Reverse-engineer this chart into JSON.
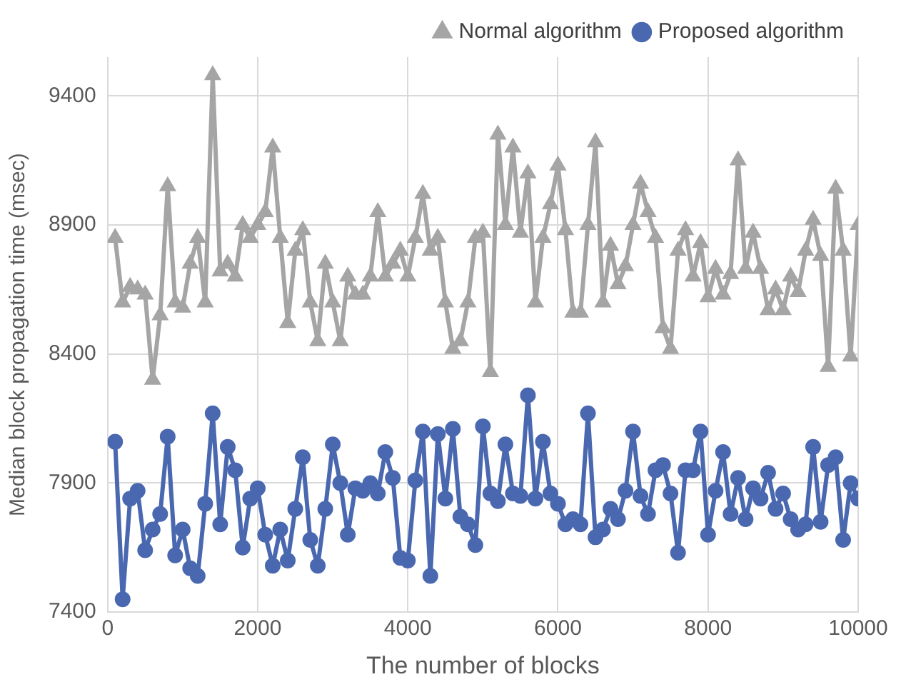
{
  "chart_data": {
    "type": "line",
    "xlabel": "The number of blocks",
    "ylabel": "Median block propagation time (msec)",
    "x": [
      100,
      200,
      300,
      400,
      500,
      600,
      700,
      800,
      900,
      1000,
      1100,
      1200,
      1300,
      1400,
      1500,
      1600,
      1700,
      1800,
      1900,
      2000,
      2100,
      2200,
      2300,
      2400,
      2500,
      2600,
      2700,
      2800,
      2900,
      3000,
      3100,
      3200,
      3300,
      3400,
      3500,
      3600,
      3700,
      3800,
      3900,
      4000,
      4100,
      4200,
      4300,
      4400,
      4500,
      4600,
      4700,
      4800,
      4900,
      5000,
      5100,
      5200,
      5300,
      5400,
      5500,
      5600,
      5700,
      5800,
      5900,
      6000,
      6100,
      6200,
      6300,
      6400,
      6500,
      6600,
      6700,
      6800,
      6900,
      7000,
      7100,
      7200,
      7300,
      7400,
      7500,
      7600,
      7700,
      7800,
      7900,
      8000,
      8100,
      8200,
      8300,
      8400,
      8500,
      8600,
      8700,
      8800,
      8900,
      9000,
      9100,
      9200,
      9300,
      9400,
      9500,
      9600,
      9700,
      9800,
      9900,
      10000
    ],
    "series": [
      {
        "name": "Normal algorithm",
        "color": "#a5a5a5",
        "marker": "triangle",
        "values": [
          8850,
          8600,
          8660,
          8650,
          8630,
          8300,
          8550,
          9050,
          8600,
          8580,
          8750,
          8850,
          8600,
          9480,
          8720,
          8750,
          8700,
          8900,
          8850,
          8900,
          8950,
          9200,
          8850,
          8520,
          8800,
          8880,
          8600,
          8450,
          8750,
          8600,
          8450,
          8700,
          8630,
          8630,
          8700,
          8950,
          8700,
          8750,
          8800,
          8700,
          8850,
          9020,
          8800,
          8850,
          8600,
          8420,
          8450,
          8600,
          8850,
          8870,
          8330,
          9250,
          8900,
          9200,
          8870,
          9100,
          8600,
          8850,
          8980,
          9130,
          8880,
          8560,
          8560,
          8900,
          9220,
          8600,
          8820,
          8670,
          8740,
          8900,
          9060,
          8950,
          8850,
          8500,
          8420,
          8800,
          8880,
          8700,
          8830,
          8620,
          8730,
          8630,
          8710,
          9150,
          8730,
          8870,
          8730,
          8570,
          8650,
          8570,
          8700,
          8640,
          8800,
          8920,
          8780,
          8350,
          9040,
          8800,
          8390,
          8900
        ]
      },
      {
        "name": "Proposed algorithm",
        "color": "#4a68b0",
        "marker": "circle",
        "values": [
          8060,
          7450,
          7840,
          7870,
          7640,
          7720,
          7780,
          8080,
          7620,
          7720,
          7570,
          7540,
          7820,
          8170,
          7740,
          8040,
          7950,
          7650,
          7840,
          7880,
          7700,
          7580,
          7720,
          7600,
          7800,
          8000,
          7680,
          7580,
          7800,
          8050,
          7900,
          7700,
          7880,
          7870,
          7900,
          7860,
          8020,
          7920,
          7610,
          7600,
          7910,
          8100,
          7540,
          8090,
          7840,
          8110,
          7770,
          7740,
          7660,
          8120,
          7860,
          7830,
          8050,
          7860,
          7850,
          8240,
          7840,
          8060,
          7860,
          7820,
          7740,
          7760,
          7740,
          8170,
          7690,
          7720,
          7800,
          7760,
          7870,
          8100,
          7850,
          7780,
          7950,
          7970,
          7860,
          7630,
          7950,
          7950,
          8100,
          7700,
          7870,
          8020,
          7780,
          7920,
          7760,
          7880,
          7840,
          7940,
          7800,
          7860,
          7760,
          7720,
          7740,
          8040,
          7750,
          7970,
          8000,
          7680,
          7900,
          7840
        ]
      }
    ],
    "xlim": [
      0,
      10000
    ],
    "xticks": [
      0,
      2000,
      4000,
      6000,
      8000,
      10000
    ],
    "ylim": [
      7400,
      9550
    ],
    "yticks": [
      7400,
      7900,
      8400,
      8900,
      9400
    ],
    "grid": true,
    "legend": "top right",
    "line_style": "solid"
  }
}
